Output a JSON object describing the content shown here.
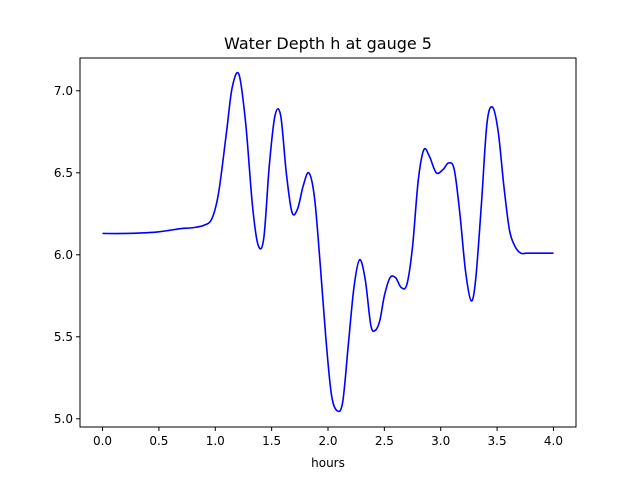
{
  "chart_data": {
    "type": "line",
    "title": "Water Depth h at gauge 5",
    "xlabel": "hours",
    "ylabel": "",
    "xlim": [
      -0.2,
      4.2
    ],
    "ylim": [
      4.95,
      7.2
    ],
    "xticks": [
      0.0,
      0.5,
      1.0,
      1.5,
      2.0,
      2.5,
      3.0,
      3.5,
      4.0
    ],
    "xtick_labels": [
      "0.0",
      "0.5",
      "1.0",
      "1.5",
      "2.0",
      "2.5",
      "3.0",
      "3.5",
      "4.0"
    ],
    "yticks": [
      5.0,
      5.5,
      6.0,
      6.5,
      7.0
    ],
    "ytick_labels": [
      "5.0",
      "5.5",
      "6.0",
      "6.5",
      "7.0"
    ],
    "grid": false,
    "series": [
      {
        "color": "#0000ff",
        "x": [
          0.0,
          0.2,
          0.4,
          0.5,
          0.6,
          0.7,
          0.8,
          0.9,
          0.97,
          1.03,
          1.1,
          1.15,
          1.21,
          1.27,
          1.33,
          1.38,
          1.43,
          1.48,
          1.53,
          1.58,
          1.63,
          1.68,
          1.73,
          1.78,
          1.83,
          1.88,
          1.93,
          1.98,
          2.03,
          2.08,
          2.13,
          2.18,
          2.23,
          2.28,
          2.33,
          2.38,
          2.42,
          2.46,
          2.5,
          2.55,
          2.6,
          2.65,
          2.7,
          2.75,
          2.8,
          2.85,
          2.9,
          2.96,
          3.02,
          3.07,
          3.12,
          3.17,
          3.22,
          3.27,
          3.31,
          3.36,
          3.41,
          3.46,
          3.51,
          3.56,
          3.61,
          3.66,
          3.71,
          3.76,
          3.81,
          3.86,
          3.91,
          3.96,
          4.0
        ],
        "y": [
          6.13,
          6.13,
          6.135,
          6.14,
          6.15,
          6.16,
          6.165,
          6.18,
          6.22,
          6.38,
          6.75,
          7.02,
          7.1,
          6.8,
          6.3,
          6.06,
          6.1,
          6.55,
          6.85,
          6.85,
          6.5,
          6.26,
          6.28,
          6.42,
          6.5,
          6.35,
          5.95,
          5.5,
          5.15,
          5.05,
          5.1,
          5.45,
          5.8,
          5.97,
          5.85,
          5.57,
          5.54,
          5.6,
          5.75,
          5.86,
          5.86,
          5.8,
          5.82,
          6.05,
          6.45,
          6.64,
          6.6,
          6.5,
          6.52,
          6.56,
          6.52,
          6.25,
          5.9,
          5.72,
          5.85,
          6.3,
          6.8,
          6.9,
          6.75,
          6.42,
          6.15,
          6.05,
          6.01,
          6.01,
          6.01,
          6.01,
          6.01,
          6.01,
          6.01
        ]
      }
    ]
  }
}
